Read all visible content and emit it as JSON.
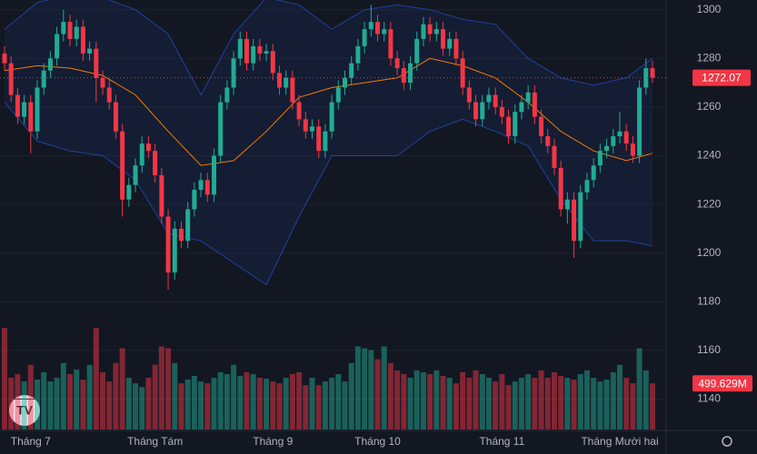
{
  "chart_data": {
    "type": "candlestick",
    "categories": [
      null,
      null,
      null,
      null,
      "Tháng 7",
      null,
      null,
      null,
      null,
      null,
      null,
      null,
      null,
      null,
      null,
      null,
      null,
      null,
      null,
      null,
      null,
      null,
      null,
      "Tháng Tám",
      null,
      null,
      null,
      null,
      null,
      null,
      null,
      null,
      null,
      null,
      null,
      null,
      null,
      null,
      null,
      null,
      null,
      "Tháng 9",
      null,
      null,
      null,
      null,
      null,
      null,
      null,
      null,
      null,
      null,
      null,
      null,
      null,
      null,
      null,
      "Tháng 10",
      null,
      null,
      null,
      null,
      null,
      null,
      null,
      null,
      null,
      null,
      null,
      null,
      null,
      null,
      null,
      null,
      null,
      null,
      "Tháng 11",
      null,
      null,
      null,
      null,
      null,
      null,
      null,
      null,
      null,
      null,
      null,
      null,
      null,
      null,
      null,
      null,
      null,
      "Tháng Mười hai",
      null,
      null,
      null,
      null,
      null
    ],
    "open": [
      1282,
      1278,
      1265,
      1256,
      1262,
      1250,
      1268,
      1275,
      1280,
      1290,
      1295,
      1288,
      1293,
      1282,
      1284,
      1272,
      1268,
      1262,
      1250,
      1222,
      1228,
      1236,
      1245,
      1242,
      1232,
      1215,
      1192,
      1210,
      1205,
      1218,
      1226,
      1230,
      1224,
      1240,
      1262,
      1268,
      1280,
      1288,
      1278,
      1285,
      1282,
      1283,
      1274,
      1268,
      1272,
      1262,
      1255,
      1250,
      1252,
      1242,
      1250,
      1262,
      1268,
      1272,
      1278,
      1285,
      1292,
      1295,
      1290,
      1292,
      1280,
      1276,
      1270,
      1278,
      1288,
      1294,
      1290,
      1292,
      1284,
      1288,
      1280,
      1268,
      1262,
      1255,
      1262,
      1265,
      1260,
      1256,
      1248,
      1258,
      1262,
      1266,
      1256,
      1248,
      1244,
      1235,
      1218,
      1222,
      1205,
      1225,
      1230,
      1236,
      1242,
      1244,
      1248,
      1250,
      1245,
      1240,
      1268,
      1276
    ],
    "high": [
      1285,
      1281,
      1268,
      1265,
      1265,
      1271,
      1278,
      1283,
      1293,
      1300,
      1298,
      1296,
      1296,
      1287,
      1287,
      1275,
      1271,
      1265,
      1253,
      1231,
      1239,
      1248,
      1248,
      1245,
      1235,
      1218,
      1213,
      1213,
      1221,
      1229,
      1233,
      1233,
      1243,
      1265,
      1271,
      1283,
      1291,
      1291,
      1288,
      1288,
      1286,
      1286,
      1277,
      1275,
      1275,
      1265,
      1258,
      1255,
      1255,
      1253,
      1265,
      1271,
      1275,
      1281,
      1288,
      1295,
      1302,
      1298,
      1295,
      1295,
      1283,
      1279,
      1281,
      1291,
      1297,
      1297,
      1295,
      1295,
      1291,
      1291,
      1283,
      1271,
      1265,
      1265,
      1268,
      1268,
      1263,
      1259,
      1261,
      1265,
      1269,
      1269,
      1259,
      1251,
      1247,
      1238,
      1225,
      1225,
      1228,
      1233,
      1239,
      1245,
      1247,
      1251,
      1258,
      1253,
      1248,
      1271,
      1280,
      1279
    ],
    "low": [
      1275,
      1262,
      1253,
      1253,
      1241,
      1247,
      1265,
      1272,
      1277,
      1287,
      1285,
      1285,
      1279,
      1279,
      1262,
      1265,
      1259,
      1247,
      1215,
      1219,
      1225,
      1233,
      1239,
      1229,
      1212,
      1185,
      1189,
      1202,
      1202,
      1215,
      1223,
      1221,
      1221,
      1237,
      1259,
      1265,
      1277,
      1275,
      1275,
      1279,
      1279,
      1271,
      1265,
      1265,
      1259,
      1252,
      1247,
      1247,
      1239,
      1239,
      1247,
      1259,
      1265,
      1269,
      1275,
      1282,
      1289,
      1287,
      1287,
      1277,
      1273,
      1267,
      1267,
      1275,
      1285,
      1287,
      1287,
      1281,
      1281,
      1277,
      1265,
      1259,
      1252,
      1252,
      1259,
      1257,
      1253,
      1245,
      1245,
      1255,
      1259,
      1253,
      1245,
      1241,
      1232,
      1215,
      1212,
      1198,
      1202,
      1222,
      1227,
      1233,
      1239,
      1241,
      1245,
      1242,
      1237,
      1237,
      1265,
      1270
    ],
    "close": [
      1278,
      1265,
      1256,
      1262,
      1250,
      1268,
      1275,
      1280,
      1290,
      1295,
      1288,
      1293,
      1282,
      1284,
      1272,
      1268,
      1262,
      1250,
      1222,
      1228,
      1236,
      1245,
      1242,
      1232,
      1215,
      1192,
      1210,
      1205,
      1218,
      1226,
      1230,
      1224,
      1240,
      1262,
      1268,
      1280,
      1288,
      1278,
      1285,
      1282,
      1283,
      1274,
      1268,
      1272,
      1262,
      1255,
      1250,
      1252,
      1242,
      1250,
      1262,
      1268,
      1272,
      1278,
      1285,
      1292,
      1295,
      1290,
      1292,
      1280,
      1276,
      1270,
      1278,
      1288,
      1294,
      1290,
      1292,
      1284,
      1288,
      1280,
      1268,
      1262,
      1255,
      1262,
      1265,
      1260,
      1256,
      1248,
      1258,
      1262,
      1266,
      1256,
      1248,
      1244,
      1235,
      1218,
      1222,
      1205,
      1225,
      1230,
      1236,
      1242,
      1244,
      1248,
      1250,
      1245,
      1240,
      1268,
      1276,
      1272.07
    ],
    "volume": [
      1100,
      560,
      600,
      520,
      700,
      540,
      620,
      520,
      560,
      720,
      600,
      650,
      540,
      700,
      1100,
      620,
      520,
      720,
      880,
      560,
      500,
      460,
      560,
      700,
      900,
      880,
      720,
      500,
      540,
      580,
      520,
      500,
      560,
      620,
      600,
      700,
      580,
      620,
      600,
      560,
      550,
      520,
      500,
      560,
      600,
      620,
      480,
      560,
      480,
      520,
      560,
      600,
      520,
      720,
      900,
      880,
      860,
      760,
      900,
      720,
      640,
      600,
      560,
      640,
      620,
      600,
      640,
      580,
      560,
      500,
      620,
      560,
      640,
      600,
      560,
      520,
      600,
      480,
      520,
      560,
      600,
      560,
      640,
      560,
      620,
      580,
      560,
      540,
      600,
      640,
      560,
      520,
      540,
      620,
      700,
      560,
      500,
      880,
      640,
      499.629
    ],
    "volume_label": "499.629M",
    "volume_lim": [
      0,
      1180
    ],
    "bollinger": {
      "x": [
        0,
        5,
        10,
        15,
        20,
        25,
        30,
        35,
        40,
        45,
        50,
        55,
        60,
        65,
        70,
        75,
        80,
        85,
        90,
        95,
        99
      ],
      "middle": [
        1275,
        1277,
        1276,
        1273,
        1265,
        1250,
        1236,
        1238,
        1250,
        1264,
        1268,
        1270,
        1272,
        1280,
        1277,
        1272,
        1262,
        1250,
        1242,
        1238,
        1241
      ],
      "upper": [
        1292,
        1303,
        1306,
        1305,
        1300,
        1290,
        1265,
        1290,
        1305,
        1302,
        1292,
        1300,
        1302,
        1300,
        1296,
        1294,
        1280,
        1272,
        1269,
        1272,
        1280
      ],
      "lower": [
        1262,
        1246,
        1242,
        1240,
        1230,
        1208,
        1205,
        1196,
        1187,
        1215,
        1240,
        1240,
        1240,
        1250,
        1255,
        1250,
        1244,
        1222,
        1205,
        1205,
        1203
      ]
    },
    "up_color": "#22ab94",
    "down_color": "#f23645",
    "middle_color": "#f57c00",
    "band_color": "#2962ff",
    "ylim": [
      1127.5,
      1304
    ],
    "yticks": [
      1140,
      1160,
      1180,
      1200,
      1220,
      1240,
      1260,
      1280,
      1300
    ],
    "grid": true
  }
}
